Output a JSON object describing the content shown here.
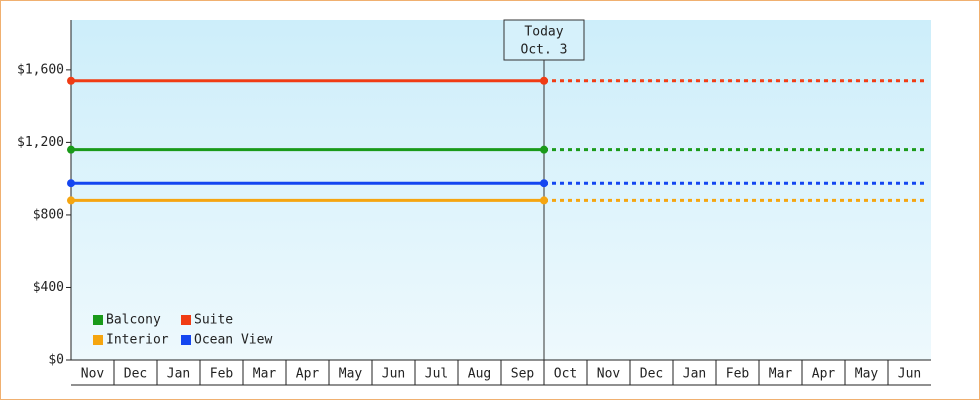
{
  "chart_data": {
    "type": "line",
    "categories": [
      "Nov",
      "Dec",
      "Jan",
      "Feb",
      "Mar",
      "Apr",
      "May",
      "Jun",
      "Jul",
      "Aug",
      "Sep",
      "Oct",
      "Nov",
      "Dec",
      "Jan",
      "Feb",
      "Mar",
      "Apr",
      "May",
      "Jun"
    ],
    "x": [
      "Nov",
      "Oct"
    ],
    "series": [
      {
        "name": "Balcony",
        "color": "#1a9a1a",
        "values": [
          1160,
          1160
        ]
      },
      {
        "name": "Suite",
        "color": "#f03c14",
        "values": [
          1540,
          1540
        ]
      },
      {
        "name": "Interior",
        "color": "#f5a510",
        "values": [
          880,
          880
        ]
      },
      {
        "name": "Ocean View",
        "color": "#1446f0",
        "values": [
          975,
          975
        ]
      }
    ],
    "annotation": {
      "title": "Today",
      "date": "Oct. 3"
    },
    "ylim": [
      0,
      1875
    ],
    "yticks": [
      {
        "value": 0,
        "label": "$0"
      },
      {
        "value": 400,
        "label": "$400"
      },
      {
        "value": 800,
        "label": "$800"
      },
      {
        "value": 1200,
        "label": "$1,200"
      },
      {
        "value": 1600,
        "label": "$1,600"
      }
    ],
    "legend": "bottom-left"
  }
}
